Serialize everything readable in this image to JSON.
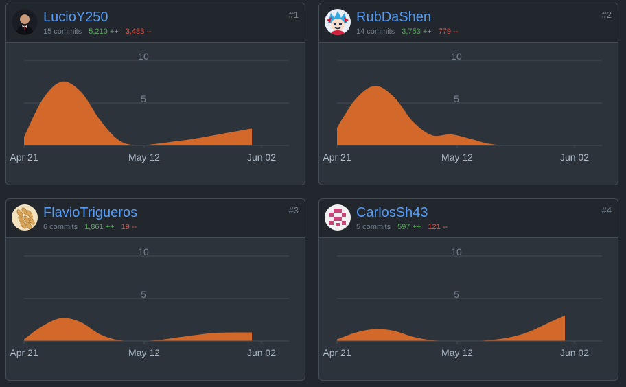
{
  "contributors": [
    {
      "username": "LucioY250",
      "rank": "#1",
      "commits": "15 commits",
      "additions": "5,210 ++",
      "deletions": "3,433 --",
      "avatar": "photo-portrait-avatar",
      "chart_data": {
        "type": "area",
        "x_labels": [
          "Apr 21",
          "May 12",
          "Jun 02"
        ],
        "y_ticks": [
          5,
          10
        ],
        "ylim": [
          0,
          10
        ],
        "x": [
          "Apr 21",
          "Apr 24",
          "Apr 28",
          "May 01",
          "May 05",
          "May 09",
          "May 12",
          "May 16",
          "May 20",
          "May 23",
          "May 27",
          "May 30",
          "Jun 02"
        ],
        "values": [
          1.0,
          5.5,
          7.5,
          6.3,
          3.0,
          0.6,
          0.0,
          0.2,
          0.5,
          0.8,
          1.2,
          1.6,
          2.0
        ]
      }
    },
    {
      "username": "RubDaShen",
      "rank": "#2",
      "commits": "14 commits",
      "additions": "3,753 ++",
      "deletions": "779 --",
      "avatar": "cartoon-character-avatar",
      "chart_data": {
        "type": "area",
        "x_labels": [
          "Apr 21",
          "May 12",
          "Jun 02"
        ],
        "y_ticks": [
          5,
          10
        ],
        "ylim": [
          0,
          10
        ],
        "x": [
          "Apr 21",
          "Apr 24",
          "Apr 28",
          "May 01",
          "May 05",
          "May 09",
          "May 12",
          "May 16",
          "May 20",
          "May 23",
          "May 27",
          "May 30",
          "Jun 02"
        ],
        "values": [
          2.1,
          5.5,
          7.0,
          5.7,
          2.8,
          1.2,
          1.3,
          0.8,
          0.2,
          0.0,
          0.0,
          0.0,
          0.0
        ]
      }
    },
    {
      "username": "FlavioTrigueros",
      "rank": "#3",
      "commits": "6 commits",
      "additions": "1,861 ++",
      "deletions": "19 --",
      "avatar": "wheat-avatar",
      "chart_data": {
        "type": "area",
        "x_labels": [
          "Apr 21",
          "May 12",
          "Jun 02"
        ],
        "y_ticks": [
          5,
          10
        ],
        "ylim": [
          0,
          10
        ],
        "x": [
          "Apr 21",
          "Apr 24",
          "Apr 28",
          "May 01",
          "May 05",
          "May 09",
          "May 12",
          "May 16",
          "May 20",
          "May 23",
          "May 27",
          "May 30",
          "Jun 02"
        ],
        "values": [
          0.2,
          1.8,
          2.7,
          2.2,
          0.8,
          0.1,
          0.0,
          0.1,
          0.4,
          0.7,
          0.95,
          1.0,
          1.0
        ]
      }
    },
    {
      "username": "CarlosSh43",
      "rank": "#4",
      "commits": "5 commits",
      "additions": "597 ++",
      "deletions": "121 --",
      "avatar": "pixel-identicon-avatar",
      "chart_data": {
        "type": "area",
        "x_labels": [
          "Apr 21",
          "May 12",
          "Jun 02"
        ],
        "y_ticks": [
          5,
          10
        ],
        "ylim": [
          0,
          10
        ],
        "x": [
          "Apr 21",
          "Apr 24",
          "Apr 28",
          "May 01",
          "May 05",
          "May 09",
          "May 12",
          "May 16",
          "May 20",
          "May 23",
          "May 27",
          "May 30",
          "Jun 02"
        ],
        "values": [
          0.2,
          1.0,
          1.4,
          1.2,
          0.5,
          0.1,
          0.0,
          0.0,
          0.1,
          0.4,
          1.0,
          2.0,
          3.0
        ]
      }
    }
  ],
  "colors": {
    "area_fill": "#d2692a",
    "grid": "#444c56",
    "username": "#539bf5",
    "additions": "#57ab5a",
    "deletions": "#e5534b",
    "muted": "#768390"
  }
}
